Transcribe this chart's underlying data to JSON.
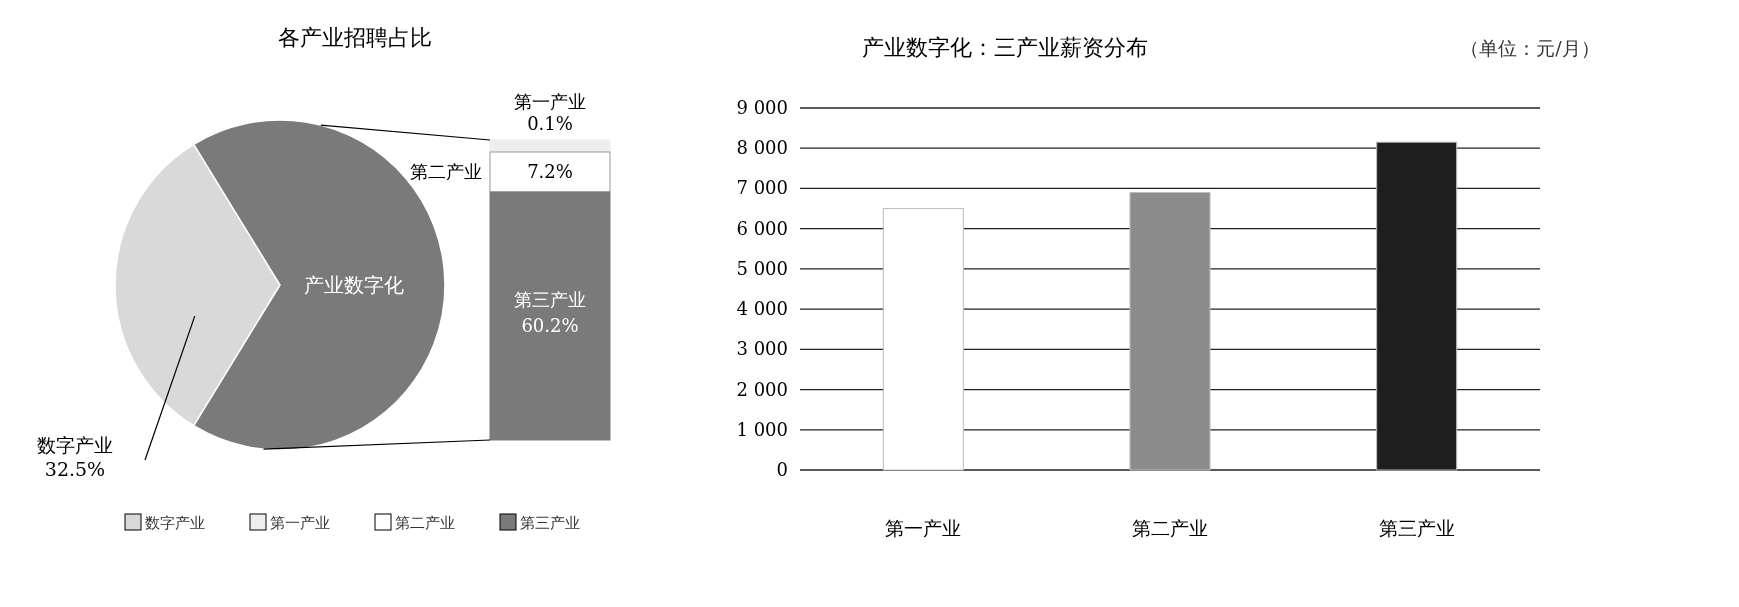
{
  "chart_data": [
    {
      "type": "pie",
      "title": "各产业招聘占比",
      "categories": [
        "数字产业",
        "产业数字化"
      ],
      "values": [
        32.5,
        67.5
      ],
      "colors": [
        "#d9d9d9",
        "#7a7a7a"
      ],
      "value_labels": [
        "32.5%",
        null
      ],
      "legend": "bottom"
    },
    {
      "type": "other",
      "categories": [
        "第一产业",
        "第二产业",
        "第三产业"
      ],
      "values": [
        0.1,
        7.2,
        60.2
      ],
      "colors": [
        "#eeeeee",
        "#ffffff",
        "#7a7a7a"
      ],
      "value_labels": [
        "0.1%",
        "7.2%",
        "60.2%"
      ]
    },
    {
      "type": "bar",
      "title": "产业数字化：三产业薪资分布",
      "annotations": [
        "（单位：元/月）"
      ],
      "categories": [
        "第一产业",
        "第二产业",
        "第三产业"
      ],
      "values": [
        6500,
        6900,
        8150
      ],
      "colors": [
        "#ffffff",
        "#8c8c8c",
        "#1e1e1e"
      ],
      "ylim": [
        0,
        9000
      ],
      "yticks": [
        {
          "value": 0,
          "label": "0"
        },
        {
          "value": 1000,
          "label": "1 000"
        },
        {
          "value": 2000,
          "label": "2 000"
        },
        {
          "value": 3000,
          "label": "3 000"
        },
        {
          "value": 4000,
          "label": "4 000"
        },
        {
          "value": 5000,
          "label": "5 000"
        },
        {
          "value": 6000,
          "label": "6 000"
        },
        {
          "value": 7000,
          "label": "7 000"
        },
        {
          "value": 8000,
          "label": "8 000"
        },
        {
          "value": 9000,
          "label": "9 000"
        }
      ],
      "grid": "y"
    }
  ]
}
